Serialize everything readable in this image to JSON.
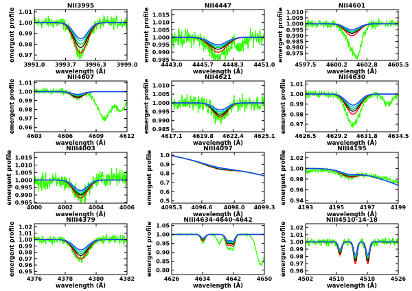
{
  "figure": {
    "xlabel": "wavelength (Å)",
    "ylabel": "emergent profile"
  },
  "colors": {
    "observed": "#33ff00",
    "red": "#ff0000",
    "black": "#000000",
    "green": "#00bb00",
    "cyan": "#00ccff",
    "blue": "#1f3fff"
  },
  "chart_data": [
    {
      "type": "line",
      "title": "NII3995",
      "xlim": [
        3991.0,
        3999.0
      ],
      "ylim": [
        0.965,
        1.012
      ],
      "xticks": [
        "3991.0",
        "3993.7",
        "3996.3",
        "3999.0"
      ],
      "yticks": [
        "0.97",
        "0.98",
        "0.99",
        "1.00",
        "1.01"
      ],
      "lines": [
        {
          "center": 3995.0,
          "width": 0.6
        }
      ],
      "model_depths": [
        0.028,
        0.023,
        0.02,
        0.017,
        0.015
      ],
      "observed": {
        "depth_scale": 1.0,
        "noise": 0.005,
        "extra": [],
        "tilt": 0
      }
    },
    {
      "type": "line",
      "title": "NII4447",
      "xlim": [
        4443.0,
        4451.0
      ],
      "ylim": [
        0.9845,
        1.0185
      ],
      "xticks": [
        "4443.0",
        "4445.7",
        "4448.3",
        "4451.0"
      ],
      "yticks": [
        "0.985",
        "0.990",
        "0.995",
        "1.000",
        "1.005",
        "1.010",
        "1.015"
      ],
      "lines": [
        {
          "center": 4447.0,
          "width": 0.75
        }
      ],
      "model_depths": [
        0.01,
        0.008,
        0.007,
        0.006,
        0.005
      ],
      "observed": {
        "depth_scale": 1.3,
        "noise": 0.005,
        "extra": [
          {
            "center": 4449.0,
            "depth": 0.007,
            "width": 0.45
          }
        ],
        "tilt": 0.002
      }
    },
    {
      "type": "line",
      "title": "NII4601",
      "xlim": [
        4597.5,
        4605.5
      ],
      "ylim": [
        0.969,
        1.012
      ],
      "xticks": [
        "4597.5",
        "4600.2",
        "4602.8",
        "4605.5"
      ],
      "yticks": [
        "0.975",
        "0.980",
        "0.985",
        "0.990",
        "0.995",
        "1.000",
        "1.005",
        "1.010"
      ],
      "lines": [
        {
          "center": 4601.5,
          "width": 0.6
        }
      ],
      "model_depths": [
        0.01,
        0.008,
        0.007,
        0.006,
        0.005
      ],
      "observed": {
        "depth_scale": 1.6,
        "noise": 0.003,
        "extra": [
          {
            "center": 4602.0,
            "depth": 0.015,
            "width": 0.4
          }
        ],
        "tilt": 0
      }
    },
    {
      "type": "line",
      "title": "NII4607",
      "xlim": [
        4603,
        4612
      ],
      "ylim": [
        0.955,
        1.012
      ],
      "xticks": [
        "4603",
        "4606",
        "4609",
        "4612"
      ],
      "yticks": [
        "0.96",
        "0.97",
        "0.98",
        "0.99",
        "1.00",
        "1.01"
      ],
      "lines": [
        {
          "center": 4607.2,
          "width": 0.55
        }
      ],
      "model_depths": [
        0.007,
        0.006,
        0.005,
        0.004,
        0.003
      ],
      "observed": {
        "depth_scale": 1.0,
        "noise": 0.003,
        "extra": [
          {
            "center": 4609.8,
            "depth": 0.03,
            "width": 0.65
          },
          {
            "center": 4611.5,
            "depth": 0.02,
            "width": 0.5
          }
        ],
        "tilt": 0
      }
    },
    {
      "type": "line",
      "title": "NII4621",
      "xlim": [
        4617.1,
        4625.1
      ],
      "ylim": [
        0.9835,
        1.0125
      ],
      "xticks": [
        "4617.1",
        "4619.8",
        "4622.4",
        "4625.1"
      ],
      "yticks": [
        "0.985",
        "0.990",
        "0.995",
        "1.000",
        "1.005",
        "1.010"
      ],
      "lines": [
        {
          "center": 4621.3,
          "width": 0.6
        }
      ],
      "model_depths": [
        0.008,
        0.007,
        0.006,
        0.005,
        0.004
      ],
      "observed": {
        "depth_scale": 1.1,
        "noise": 0.004,
        "extra": [],
        "tilt": 0
      }
    },
    {
      "type": "line",
      "title": "NII4630",
      "xlim": [
        4626.5,
        4634.5
      ],
      "ylim": [
        0.9625,
        1.013
      ],
      "xticks": [
        "4626.5",
        "4629.2",
        "4631.8",
        "4634.5"
      ],
      "yticks": [
        "0.97",
        "0.98",
        "0.99",
        "1.00",
        "1.01"
      ],
      "lines": [
        {
          "center": 4630.6,
          "width": 0.6
        }
      ],
      "model_depths": [
        0.02,
        0.017,
        0.015,
        0.013,
        0.011
      ],
      "observed": {
        "depth_scale": 1.5,
        "noise": 0.003,
        "extra": [
          {
            "center": 4633.6,
            "depth": 0.01,
            "width": 0.4
          }
        ],
        "tilt": 0
      }
    },
    {
      "type": "line",
      "title": "NIII4003",
      "xlim": [
        4000,
        4006
      ],
      "ylim": [
        0.9845,
        1.0185
      ],
      "xticks": [
        "4000",
        "4002",
        "4004",
        "4006"
      ],
      "yticks": [
        "0.985",
        "0.990",
        "0.995",
        "1.000",
        "1.005",
        "1.010",
        "1.015"
      ],
      "lines": [
        {
          "center": 4003.0,
          "width": 0.45
        }
      ],
      "model_depths": [
        0.012,
        0.01,
        0.009,
        0.008,
        0.007
      ],
      "observed": {
        "depth_scale": 0.9,
        "noise": 0.005,
        "extra": [],
        "tilt": 0.004
      }
    },
    {
      "type": "line",
      "title": "NIII4097",
      "xlim": [
        4095.3,
        4099.3
      ],
      "ylim": [
        0.475,
        1.03
      ],
      "xticks": [
        "4095.3",
        "4096.6",
        "4098.0",
        "4099.3"
      ],
      "yticks": [
        "0.5",
        "0.6",
        "0.7",
        "0.8",
        "0.9",
        "1.0"
      ],
      "lines": [
        {
          "center": 4097.3,
          "width": 0.55
        }
      ],
      "model_depths": [
        0.035,
        0.03,
        0.025,
        0.022,
        0.018
      ],
      "observed": {
        "depth_scale": 1.0,
        "noise": 0.004,
        "extra": [],
        "tilt": 0
      },
      "continuum": {
        "type": "hdelta_wing",
        "base": 0.995,
        "slope_per_A": 0.055
      }
    },
    {
      "type": "line",
      "title": "NIII4195",
      "xlim": [
        4193,
        4199
      ],
      "ylim": [
        0.935,
        1.03
      ],
      "xticks": [
        "4193",
        "4195",
        "4197",
        "4199"
      ],
      "yticks": [
        "0.94",
        "0.96",
        "0.98",
        "1.00",
        "1.02"
      ],
      "lines": [
        {
          "center": 4195.8,
          "width": 0.5
        }
      ],
      "model_depths": [
        0.01,
        0.008,
        0.007,
        0.006,
        0.005
      ],
      "observed": {
        "depth_scale": 1.0,
        "noise": 0.004,
        "extra": [],
        "tilt": 0.01
      },
      "continuum": {
        "type": "droop",
        "base": 1.0,
        "slope_per_A": 0.008
      }
    },
    {
      "type": "line",
      "title": "NIII4379",
      "xlim": [
        4376,
        4382
      ],
      "ylim": [
        0.945,
        1.025
      ],
      "xticks": [
        "4376",
        "4378",
        "4380",
        "4382"
      ],
      "yticks": [
        "0.95",
        "0.96",
        "0.97",
        "0.98",
        "0.99",
        "1.00",
        "1.01",
        "1.02"
      ],
      "lines": [
        {
          "center": 4379.0,
          "width": 0.45
        }
      ],
      "model_depths": [
        0.03,
        0.025,
        0.022,
        0.019,
        0.016
      ],
      "observed": {
        "depth_scale": 1.1,
        "noise": 0.006,
        "extra": [],
        "tilt": 0
      }
    },
    {
      "type": "line",
      "title": "NIII4634-4640-4642",
      "xlim": [
        4626,
        4650
      ],
      "ylim": [
        0.775,
        1.06
      ],
      "xticks": [
        "4626",
        "4634",
        "4642",
        "4650"
      ],
      "yticks": [
        "0.80",
        "0.85",
        "0.90",
        "0.95",
        "1.00",
        "1.05"
      ],
      "lines": [
        {
          "center": 4634.1,
          "width": 0.55
        },
        {
          "center": 4640.6,
          "width": 0.6
        },
        {
          "center": 4641.9,
          "width": 0.5
        }
      ],
      "model_depths": [
        0.06,
        0.05,
        0.045,
        0.04,
        0.035
      ],
      "observed": {
        "depth_scale": 1.3,
        "noise": 0.004,
        "extra": [
          {
            "center": 4638.3,
            "depth": 0.05,
            "width": 0.6
          },
          {
            "center": 4649.1,
            "depth": 0.17,
            "width": 1.1
          }
        ],
        "tilt": 0
      }
    },
    {
      "type": "line",
      "title": "NIII4510-14-18",
      "xlim": [
        4502,
        4526
      ],
      "ylim": [
        0.955,
        1.025
      ],
      "xticks": [
        "4502",
        "4510",
        "4518",
        "4526"
      ],
      "yticks": [
        "0.96",
        "0.97",
        "0.98",
        "0.99",
        "1.00",
        "1.01",
        "1.02"
      ],
      "lines": [
        {
          "center": 4510.9,
          "width": 0.45
        },
        {
          "center": 4514.9,
          "width": 0.45
        },
        {
          "center": 4518.1,
          "width": 0.45
        }
      ],
      "model_depths": [
        0.03,
        0.026,
        0.023,
        0.02,
        0.018
      ],
      "observed": {
        "depth_scale": 0.8,
        "noise": 0.005,
        "extra": [],
        "tilt": 0
      }
    }
  ]
}
